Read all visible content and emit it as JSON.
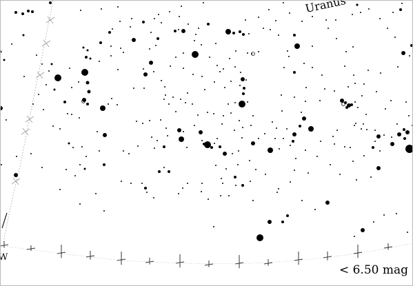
{
  "planet": {
    "name": "Uranus"
  },
  "limit_label": "< 6.50 mag",
  "direction_label": "W",
  "colors": {
    "sky": "#ffffff",
    "stars": "#000000",
    "grid": "#9a9a9a"
  }
}
